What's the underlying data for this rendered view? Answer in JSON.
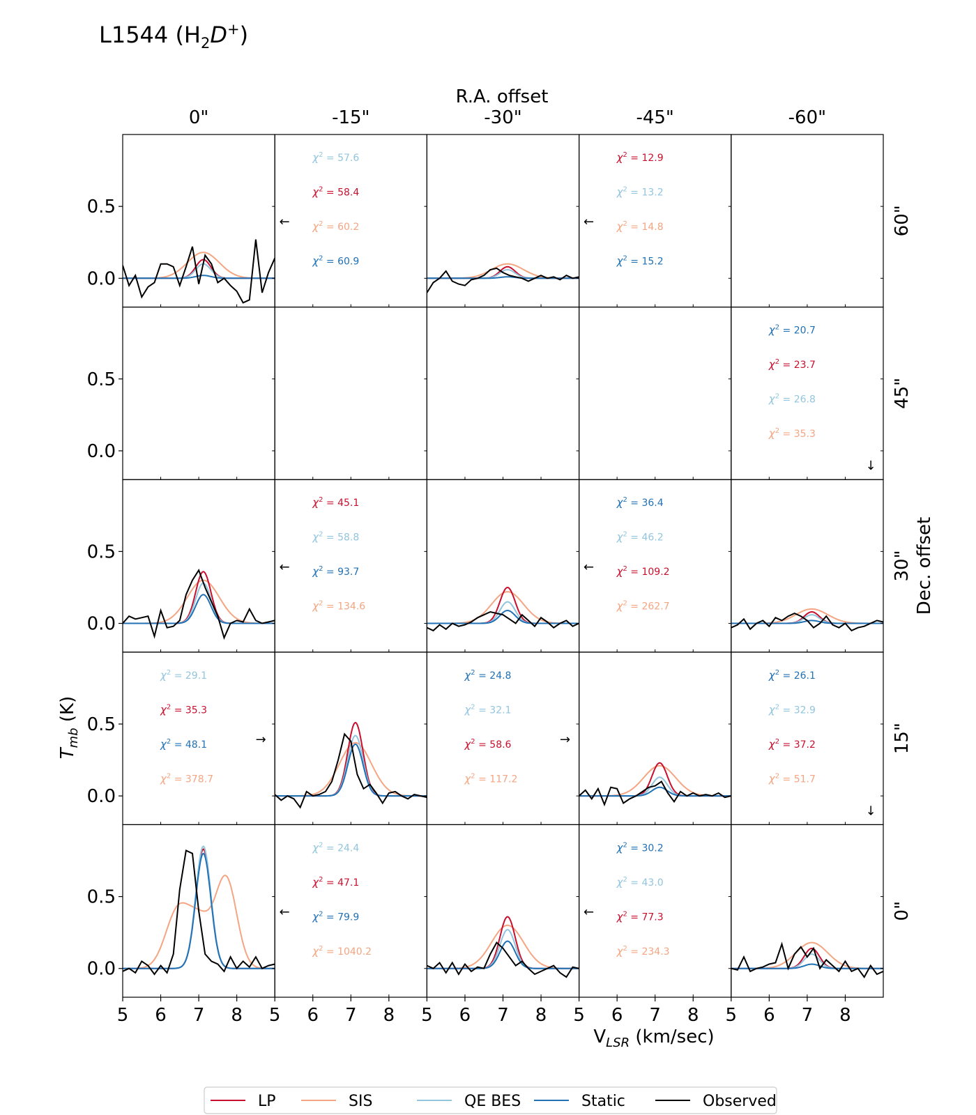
{
  "title": {
    "main": "L1544 (H",
    "sub": "2",
    "it": "D",
    "sup": "+",
    "close": ")"
  },
  "labels": {
    "ra_header": "R.A. offset",
    "dec_header": "Dec. offset",
    "xlabel": "V",
    "xlabel_sub": "LSR",
    "xlabel_tail": " (km/sec)",
    "ylabel": "T",
    "ylabel_sub": "mb",
    "ylabel_tail": " (K)",
    "chi_symbol": "χ",
    "chi_sup": "2"
  },
  "colors": {
    "LP": "#c8102e",
    "SIS": "#f4a582",
    "QE BES": "#92c5de",
    "Static": "#2171b5",
    "Observed": "#000000"
  },
  "legend": [
    "LP",
    "SIS",
    "QE BES",
    "Static",
    "Observed"
  ],
  "chart_data": {
    "type": "line",
    "title": "L1544 (H2D+)",
    "xlabel": "VLSR (km/sec)",
    "ylabel": "Tmb (K)",
    "xlim": [
      5,
      9
    ],
    "ylim": [
      -0.2,
      1.0
    ],
    "x_ticks": [
      5,
      6,
      7,
      8
    ],
    "y_ticks": [
      0.0,
      0.5
    ],
    "ra_offsets": [
      "0\"",
      "-15\"",
      "-30\"",
      "-45\"",
      "-60\""
    ],
    "dec_offsets": [
      "60\"",
      "45\"",
      "30\"",
      "15\"",
      "0\""
    ],
    "panels": [
      {
        "row": 0,
        "col": 0,
        "data": true,
        "peaks": {
          "LP": 0.13,
          "SIS": 0.18,
          "QE BES": 0.1,
          "Static": 0.02
        },
        "chi2": [],
        "obs": [
          0.09,
          -0.05,
          0.02,
          -0.13,
          -0.06,
          -0.03,
          0.1,
          0.1,
          0.08,
          -0.05,
          0.08,
          0.22,
          -0.04,
          0.16,
          0.1,
          -0.03,
          0.0,
          -0.05,
          -0.09,
          -0.17,
          -0.15,
          0.27,
          -0.1,
          0.04,
          0.14
        ]
      },
      {
        "row": 0,
        "col": 1,
        "data": false,
        "arrow": "left",
        "chi2": [
          {
            "model": "QE BES",
            "value": "57.6"
          },
          {
            "model": "LP",
            "value": "58.4"
          },
          {
            "model": "SIS",
            "value": "60.2"
          },
          {
            "model": "Static",
            "value": "60.9"
          }
        ]
      },
      {
        "row": 0,
        "col": 2,
        "data": true,
        "peaks": {
          "LP": 0.08,
          "SIS": 0.1,
          "QE BES": 0.06,
          "Static": 0.01
        },
        "chi2": [],
        "obs": [
          -0.1,
          -0.03,
          0.0,
          0.05,
          -0.02,
          -0.04,
          -0.05,
          -0.01,
          0.0,
          0.02,
          0.06,
          0.07,
          0.04,
          0.02,
          0.01,
          0.0,
          -0.02,
          0.0,
          0.02,
          0.0,
          0.01,
          -0.01,
          0.02,
          0.0,
          0.01
        ]
      },
      {
        "row": 0,
        "col": 3,
        "data": false,
        "arrow": "left",
        "chi2": [
          {
            "model": "LP",
            "value": "12.9"
          },
          {
            "model": "QE BES",
            "value": "13.2"
          },
          {
            "model": "SIS",
            "value": "14.8"
          },
          {
            "model": "Static",
            "value": "15.2"
          }
        ]
      },
      {
        "row": 0,
        "col": 4,
        "data": false,
        "chi2": []
      },
      {
        "row": 1,
        "col": 0,
        "data": false,
        "chi2": []
      },
      {
        "row": 1,
        "col": 1,
        "data": false,
        "chi2": []
      },
      {
        "row": 1,
        "col": 2,
        "data": false,
        "chi2": []
      },
      {
        "row": 1,
        "col": 3,
        "data": false,
        "chi2": []
      },
      {
        "row": 1,
        "col": 4,
        "data": false,
        "arrow": "down",
        "chi2": [
          {
            "model": "Static",
            "value": "20.7"
          },
          {
            "model": "LP",
            "value": "23.7"
          },
          {
            "model": "QE BES",
            "value": "26.8"
          },
          {
            "model": "SIS",
            "value": "35.3"
          }
        ]
      },
      {
        "row": 2,
        "col": 0,
        "data": true,
        "peaks": {
          "LP": 0.36,
          "SIS": 0.3,
          "QE BES": 0.28,
          "Static": 0.2
        },
        "chi2": [],
        "obs": [
          0.0,
          0.05,
          0.03,
          0.04,
          0.05,
          -0.09,
          0.09,
          -0.03,
          -0.02,
          0.02,
          0.2,
          0.3,
          0.37,
          0.25,
          0.15,
          0.05,
          -0.1,
          0.0,
          0.02,
          0.01,
          0.1,
          0.02,
          0.0,
          0.01,
          0.02
        ]
      },
      {
        "row": 2,
        "col": 1,
        "data": false,
        "arrow": "left",
        "chi2": [
          {
            "model": "LP",
            "value": "45.1"
          },
          {
            "model": "QE BES",
            "value": "58.8"
          },
          {
            "model": "Static",
            "value": "93.7"
          },
          {
            "model": "SIS",
            "value": "134.6"
          }
        ]
      },
      {
        "row": 2,
        "col": 2,
        "data": true,
        "peaks": {
          "LP": 0.25,
          "SIS": 0.22,
          "QE BES": 0.15,
          "Static": 0.09
        },
        "chi2": [],
        "obs": [
          -0.03,
          -0.05,
          -0.01,
          -0.04,
          0.0,
          -0.02,
          -0.01,
          0.01,
          0.04,
          0.06,
          0.08,
          0.07,
          0.06,
          0.03,
          0.0,
          0.06,
          0.02,
          -0.02,
          0.04,
          0.01,
          -0.03,
          0.0,
          0.02,
          -0.02,
          0.0
        ]
      },
      {
        "row": 2,
        "col": 3,
        "data": false,
        "arrow": "left",
        "chi2": [
          {
            "model": "Static",
            "value": "36.4"
          },
          {
            "model": "QE BES",
            "value": "46.2"
          },
          {
            "model": "LP",
            "value": "109.2"
          },
          {
            "model": "SIS",
            "value": "262.7"
          }
        ]
      },
      {
        "row": 2,
        "col": 4,
        "data": true,
        "peaks": {
          "LP": 0.08,
          "SIS": 0.1,
          "QE BES": 0.06,
          "Static": 0.02
        },
        "chi2": [],
        "obs": [
          -0.03,
          -0.01,
          0.03,
          -0.04,
          0.0,
          0.02,
          -0.02,
          0.04,
          0.02,
          0.05,
          0.07,
          0.05,
          0.02,
          -0.03,
          0.0,
          0.05,
          -0.01,
          -0.03,
          0.0,
          -0.05,
          -0.03,
          -0.02,
          0.0,
          0.02,
          0.01
        ]
      },
      {
        "row": 3,
        "col": 0,
        "data": false,
        "arrow": "right",
        "chi2": [
          {
            "model": "QE BES",
            "value": "29.1"
          },
          {
            "model": "LP",
            "value": "35.3"
          },
          {
            "model": "Static",
            "value": "48.1"
          },
          {
            "model": "SIS",
            "value": "378.7"
          }
        ]
      },
      {
        "row": 3,
        "col": 1,
        "data": true,
        "peaks": {
          "LP": 0.51,
          "SIS": 0.37,
          "QE BES": 0.42,
          "Static": 0.36
        },
        "chi2": [],
        "obs": [
          0.01,
          -0.03,
          0.0,
          -0.02,
          -0.08,
          0.03,
          0.0,
          0.01,
          0.03,
          0.1,
          0.25,
          0.43,
          0.38,
          0.15,
          0.05,
          0.08,
          0.02,
          -0.05,
          0.02,
          0.03,
          0.0,
          -0.02,
          0.01,
          0.0,
          -0.01
        ]
      },
      {
        "row": 3,
        "col": 2,
        "data": false,
        "arrow": "right",
        "chi2": [
          {
            "model": "Static",
            "value": "24.8"
          },
          {
            "model": "QE BES",
            "value": "32.1"
          },
          {
            "model": "LP",
            "value": "58.6"
          },
          {
            "model": "SIS",
            "value": "117.2"
          }
        ]
      },
      {
        "row": 3,
        "col": 3,
        "data": true,
        "peaks": {
          "LP": 0.23,
          "SIS": 0.21,
          "QE BES": 0.13,
          "Static": 0.06
        },
        "chi2": [],
        "obs": [
          0.0,
          0.04,
          -0.02,
          0.05,
          -0.06,
          0.06,
          0.05,
          -0.05,
          -0.02,
          0.0,
          0.03,
          0.06,
          0.07,
          0.1,
          0.02,
          -0.04,
          0.03,
          0.0,
          0.02,
          0.0,
          0.01,
          0.0,
          0.02,
          -0.01,
          0.0
        ]
      },
      {
        "row": 3,
        "col": 4,
        "data": false,
        "arrow": "down",
        "chi2": [
          {
            "model": "Static",
            "value": "26.1"
          },
          {
            "model": "QE BES",
            "value": "32.9"
          },
          {
            "model": "LP",
            "value": "37.2"
          },
          {
            "model": "SIS",
            "value": "51.7"
          }
        ]
      },
      {
        "row": 4,
        "col": 0,
        "data": true,
        "peaks": {
          "LP": 0.83,
          "SIS": 0.62,
          "QE BES": 0.85,
          "Static": 0.8
        },
        "chi2": [],
        "sis_double": true,
        "obs": [
          -0.02,
          0.0,
          -0.03,
          0.05,
          0.02,
          -0.04,
          0.02,
          -0.03,
          0.1,
          0.55,
          0.82,
          0.8,
          0.4,
          0.1,
          0.05,
          0.03,
          -0.02,
          0.08,
          0.0,
          0.05,
          0.01,
          0.08,
          0.0,
          0.02,
          0.03
        ]
      },
      {
        "row": 4,
        "col": 1,
        "data": false,
        "arrow": "left",
        "chi2": [
          {
            "model": "QE BES",
            "value": "24.4"
          },
          {
            "model": "LP",
            "value": "47.1"
          },
          {
            "model": "Static",
            "value": "79.9"
          },
          {
            "model": "SIS",
            "value": "1040.2"
          }
        ]
      },
      {
        "row": 4,
        "col": 2,
        "data": true,
        "peaks": {
          "LP": 0.36,
          "SIS": 0.3,
          "QE BES": 0.27,
          "Static": 0.19
        },
        "chi2": [],
        "obs": [
          0.02,
          0.0,
          0.04,
          -0.03,
          0.04,
          -0.04,
          0.03,
          -0.02,
          0.01,
          0.0,
          0.1,
          0.18,
          0.14,
          0.08,
          0.02,
          0.05,
          0.0,
          -0.04,
          -0.02,
          0.0,
          0.02,
          -0.03,
          -0.06,
          0.01,
          0.0
        ]
      },
      {
        "row": 4,
        "col": 3,
        "data": false,
        "arrow": "left",
        "chi2": [
          {
            "model": "Static",
            "value": "30.2"
          },
          {
            "model": "QE BES",
            "value": "43.0"
          },
          {
            "model": "LP",
            "value": "77.3"
          },
          {
            "model": "SIS",
            "value": "234.3"
          }
        ]
      },
      {
        "row": 4,
        "col": 4,
        "data": true,
        "peaks": {
          "LP": 0.14,
          "SIS": 0.18,
          "QE BES": 0.1,
          "Static": 0.03
        },
        "chi2": [],
        "obs": [
          0.0,
          -0.01,
          0.08,
          -0.02,
          0.0,
          0.01,
          0.03,
          0.04,
          0.17,
          0.0,
          0.1,
          0.15,
          0.08,
          0.14,
          0.0,
          0.06,
          0.02,
          -0.02,
          0.05,
          -0.02,
          0.0,
          -0.06,
          0.02,
          -0.04,
          -0.02
        ]
      }
    ]
  }
}
